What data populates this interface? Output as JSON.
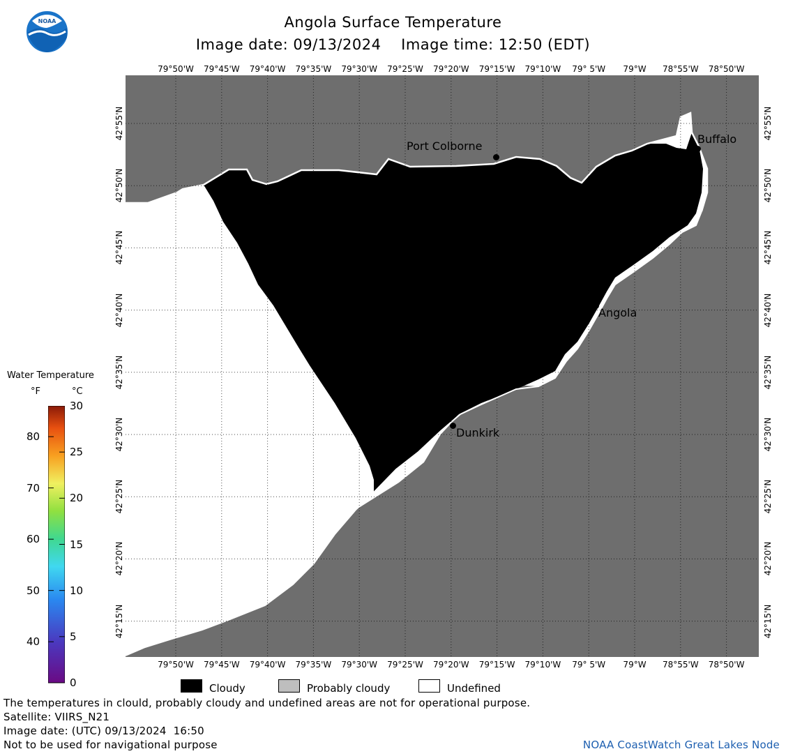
{
  "header": {
    "title": "Angola Surface Temperature",
    "subtitle": "Image date: 09/13/2024    Image time: 12:50 (EDT)",
    "logo_text": "NOAA"
  },
  "map": {
    "lon_labels": [
      "79°50'W",
      "79°45'W",
      "79°40'W",
      "79°35'W",
      "79°30'W",
      "79°25'W",
      "79°20'W",
      "79°15'W",
      "79°10'W",
      "79° 5'W",
      "79°W",
      "78°55'W",
      "78°50'W"
    ],
    "lat_labels": [
      "42°55'N",
      "42°50'N",
      "42°45'N",
      "42°40'N",
      "42°35'N",
      "42°30'N",
      "42°25'N",
      "42°20'N",
      "42°15'N"
    ],
    "cities": [
      {
        "name": "Port Colborne"
      },
      {
        "name": "Buffalo"
      },
      {
        "name": "Angola"
      },
      {
        "name": "Dunkirk"
      }
    ],
    "colors": {
      "land": "#6e6e6e",
      "cloudy": "#000000",
      "probably_cloudy": "#bebebe",
      "undefined": "#ffffff",
      "grid": "#000000"
    }
  },
  "colorbar": {
    "title": "Water Temperature",
    "f_unit": "°F",
    "c_unit": "°C",
    "f_ticks": [
      "80",
      "70",
      "60",
      "50",
      "40"
    ],
    "c_ticks": [
      "30",
      "25",
      "20",
      "15",
      "10",
      "5",
      "0"
    ],
    "range_c": [
      0,
      30
    ],
    "range_f": [
      32,
      86
    ]
  },
  "legend": {
    "items": [
      {
        "label": "Cloudy",
        "color": "#000000"
      },
      {
        "label": "Probably cloudy",
        "color": "#bebebe"
      },
      {
        "label": "Undefined",
        "color": "#ffffff"
      }
    ]
  },
  "footer": {
    "disclaimer": "The temperatures in clould, probably cloudy and undefined areas are not for operational purpose.",
    "satellite": "Satellite: VIIRS_N21",
    "utc_date": "Image date: (UTC) 09/13/2024  16:50",
    "nav_warning": "Not to be used for navigational purpose",
    "credit": "NOAA CoastWatch Great Lakes Node"
  }
}
